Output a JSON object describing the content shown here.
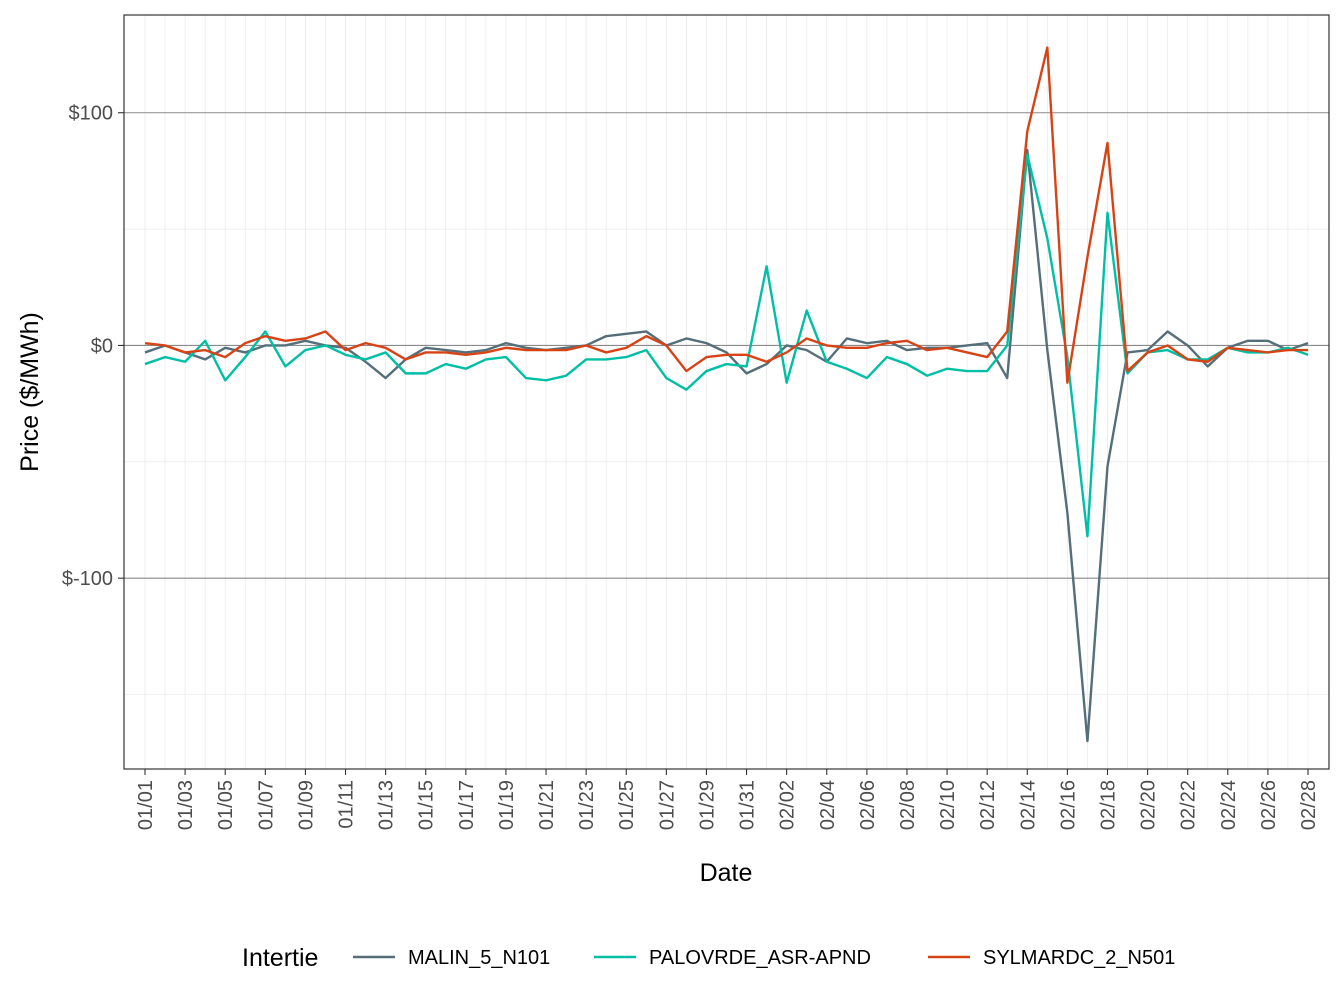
{
  "chart_data": {
    "type": "line",
    "xlabel": "Date",
    "ylabel": "Price ($/MWh)",
    "ylim": [
      -182,
      142
    ],
    "y_ticks": [
      -100,
      0,
      100
    ],
    "y_tick_labels": [
      "$-100",
      "$0",
      "$100"
    ],
    "x_tick_labels": [
      "01/01",
      "01/03",
      "01/05",
      "01/07",
      "01/09",
      "01/11",
      "01/13",
      "01/15",
      "01/17",
      "01/19",
      "01/21",
      "01/23",
      "01/25",
      "01/27",
      "01/29",
      "01/31",
      "02/02",
      "02/04",
      "02/06",
      "02/08",
      "02/10",
      "02/12",
      "02/14",
      "02/16",
      "02/18",
      "02/20",
      "02/22",
      "02/24",
      "02/26",
      "02/28"
    ],
    "x": [
      "01/01",
      "01/02",
      "01/03",
      "01/04",
      "01/05",
      "01/06",
      "01/07",
      "01/08",
      "01/09",
      "01/10",
      "01/11",
      "01/12",
      "01/13",
      "01/14",
      "01/15",
      "01/16",
      "01/17",
      "01/18",
      "01/19",
      "01/20",
      "01/21",
      "01/22",
      "01/23",
      "01/24",
      "01/25",
      "01/26",
      "01/27",
      "01/28",
      "01/29",
      "01/30",
      "01/31",
      "02/01",
      "02/02",
      "02/03",
      "02/04",
      "02/05",
      "02/06",
      "02/07",
      "02/08",
      "02/09",
      "02/10",
      "02/11",
      "02/12",
      "02/13",
      "02/14",
      "02/15",
      "02/16",
      "02/17",
      "02/18",
      "02/19",
      "02/20",
      "02/21",
      "02/22",
      "02/23",
      "02/24",
      "02/25",
      "02/26",
      "02/27",
      "02/28"
    ],
    "legend_title": "Intertie",
    "legend_position": "bottom",
    "grid": true,
    "series": [
      {
        "name": "MALIN_5_N101",
        "color": "#546e7a",
        "values": [
          -3,
          0,
          -3,
          -6,
          -1,
          -3,
          0,
          0,
          2,
          0,
          -1,
          -7,
          -14,
          -6,
          -1,
          -2,
          -3,
          -2,
          1,
          -1,
          -2,
          -1,
          0,
          4,
          5,
          6,
          0,
          3,
          1,
          -3,
          -12,
          -8,
          0,
          -2,
          -7,
          3,
          1,
          2,
          -2,
          -1,
          -1,
          0,
          1,
          -14,
          84,
          -2,
          -72,
          -170,
          -52,
          -3,
          -2,
          6,
          0,
          -9,
          -1,
          2,
          2,
          -2,
          1
        ]
      },
      {
        "name": "PALOVRDE_ASR-APND",
        "color": "#00bfa5",
        "values": [
          -8,
          -5,
          -7,
          2,
          -15,
          -5,
          6,
          -9,
          -2,
          0,
          -4,
          -6,
          -3,
          -12,
          -12,
          -8,
          -10,
          -6,
          -5,
          -14,
          -15,
          -13,
          -6,
          -6,
          -5,
          -2,
          -14,
          -19,
          -11,
          -8,
          -9,
          34,
          -16,
          15,
          -7,
          -10,
          -14,
          -5,
          -8,
          -13,
          -10,
          -11,
          -11,
          0,
          82,
          46,
          -5,
          -82,
          57,
          -12,
          -3,
          -2,
          -6,
          -6,
          -1,
          -3,
          -3,
          -1,
          -4
        ]
      },
      {
        "name": "SYLMARDC_2_N501",
        "color": "#d84315",
        "values": [
          1,
          0,
          -3,
          -2,
          -5,
          1,
          4,
          2,
          3,
          6,
          -2,
          1,
          -1,
          -6,
          -3,
          -3,
          -4,
          -3,
          -1,
          -2,
          -2,
          -2,
          0,
          -3,
          -1,
          4,
          0,
          -11,
          -5,
          -4,
          -4,
          -7,
          -3,
          3,
          0,
          -1,
          -1,
          1,
          2,
          -2,
          -1,
          -3,
          -5,
          6,
          92,
          128,
          -16,
          38,
          87,
          -11,
          -3,
          0,
          -6,
          -7,
          -1,
          -2,
          -3,
          -2,
          -2
        ]
      }
    ]
  }
}
